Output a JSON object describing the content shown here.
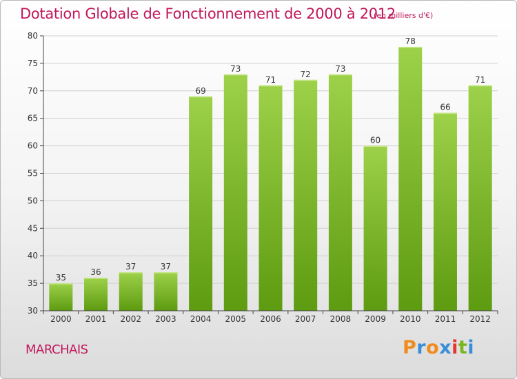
{
  "header": {
    "title": "Dotation Globale de Fonctionnement de 2000 à 2012",
    "unit": "(en milliers d'€)"
  },
  "footer": {
    "commune": "MARCHAIS",
    "logo_text": "Proxiti",
    "logo_colors": [
      "#f08c1e",
      "#3a8ed8",
      "#f08c1e",
      "#3a8ed8",
      "#e8322f",
      "#7ab51d",
      "#3a8ed8"
    ]
  },
  "colors": {
    "title": "#c0185a",
    "bar_light": "#9dd14a",
    "bar_dark": "#5d9b10",
    "axis": "#444444",
    "grid": "#d0d0d0",
    "label": "#333333"
  },
  "chart_data": {
    "type": "bar",
    "categories": [
      "2000",
      "2001",
      "2002",
      "2003",
      "2004",
      "2005",
      "2006",
      "2007",
      "2008",
      "2009",
      "2010",
      "2011",
      "2012"
    ],
    "values": [
      35,
      36,
      37,
      37,
      69,
      73,
      71,
      72,
      73,
      60,
      78,
      66,
      71
    ],
    "ylim": [
      30,
      80
    ],
    "yticks": [
      30,
      35,
      40,
      45,
      50,
      55,
      60,
      65,
      70,
      75,
      80
    ],
    "grid": true,
    "title": "Dotation Globale de Fonctionnement de 2000 à 2012",
    "ylabel": "(en milliers d'€)",
    "xlabel": ""
  }
}
